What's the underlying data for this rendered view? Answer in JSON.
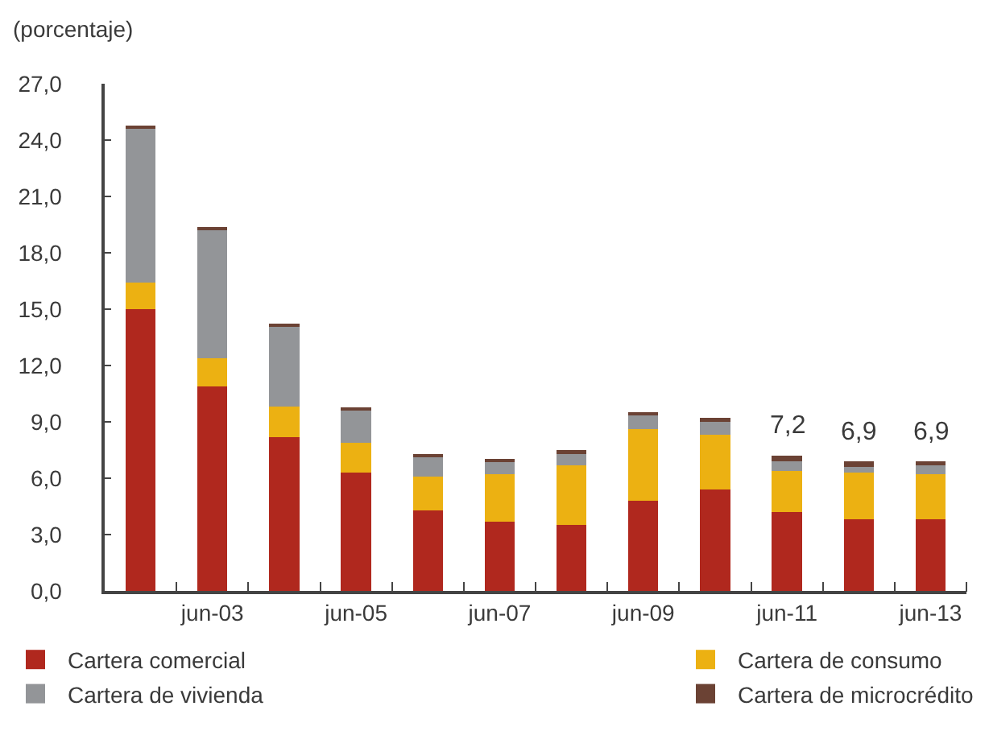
{
  "chart_data": {
    "type": "bar",
    "stacked": true,
    "ylabel": "(porcentaje)",
    "categories": [
      null,
      "jun-03",
      null,
      "jun-05",
      null,
      "jun-07",
      null,
      "jun-09",
      null,
      "jun-11",
      null,
      "jun-13"
    ],
    "series": [
      {
        "name": "Cartera comercial",
        "color": "#b0281e",
        "values": [
          15.0,
          10.9,
          8.2,
          6.3,
          4.3,
          3.7,
          3.5,
          4.8,
          5.4,
          4.2,
          3.8,
          3.8
        ]
      },
      {
        "name": "Cartera de consumo",
        "color": "#ecb112",
        "values": [
          1.4,
          1.5,
          1.6,
          1.6,
          1.8,
          2.5,
          3.2,
          3.8,
          2.9,
          2.2,
          2.5,
          2.4
        ]
      },
      {
        "name": "Cartera de vivienda",
        "color": "#939598",
        "values": [
          8.2,
          6.8,
          4.3,
          1.7,
          1.0,
          0.7,
          0.6,
          0.8,
          0.7,
          0.5,
          0.3,
          0.5
        ]
      },
      {
        "name": "Cartera de microcrédito",
        "color": "#6b4234",
        "values": [
          0.1,
          0.1,
          0.1,
          0.1,
          0.2,
          0.1,
          0.2,
          0.1,
          0.2,
          0.3,
          0.3,
          0.2
        ]
      }
    ],
    "ylim": [
      0,
      27
    ],
    "yticks": [
      {
        "value": 0,
        "label": "0,0"
      },
      {
        "value": 3,
        "label": "3,0"
      },
      {
        "value": 6,
        "label": "6,0"
      },
      {
        "value": 9,
        "label": "9,0"
      },
      {
        "value": 12,
        "label": "12,0"
      },
      {
        "value": 15,
        "label": "15,0"
      },
      {
        "value": 18,
        "label": "18,0"
      },
      {
        "value": 21,
        "label": "21,0"
      },
      {
        "value": 24,
        "label": "24,0"
      },
      {
        "value": 27,
        "label": "27,0"
      }
    ],
    "totals": [
      null,
      null,
      null,
      null,
      null,
      null,
      null,
      null,
      null,
      "7,2",
      "6,9",
      "6,9"
    ],
    "legend": "bottom"
  }
}
